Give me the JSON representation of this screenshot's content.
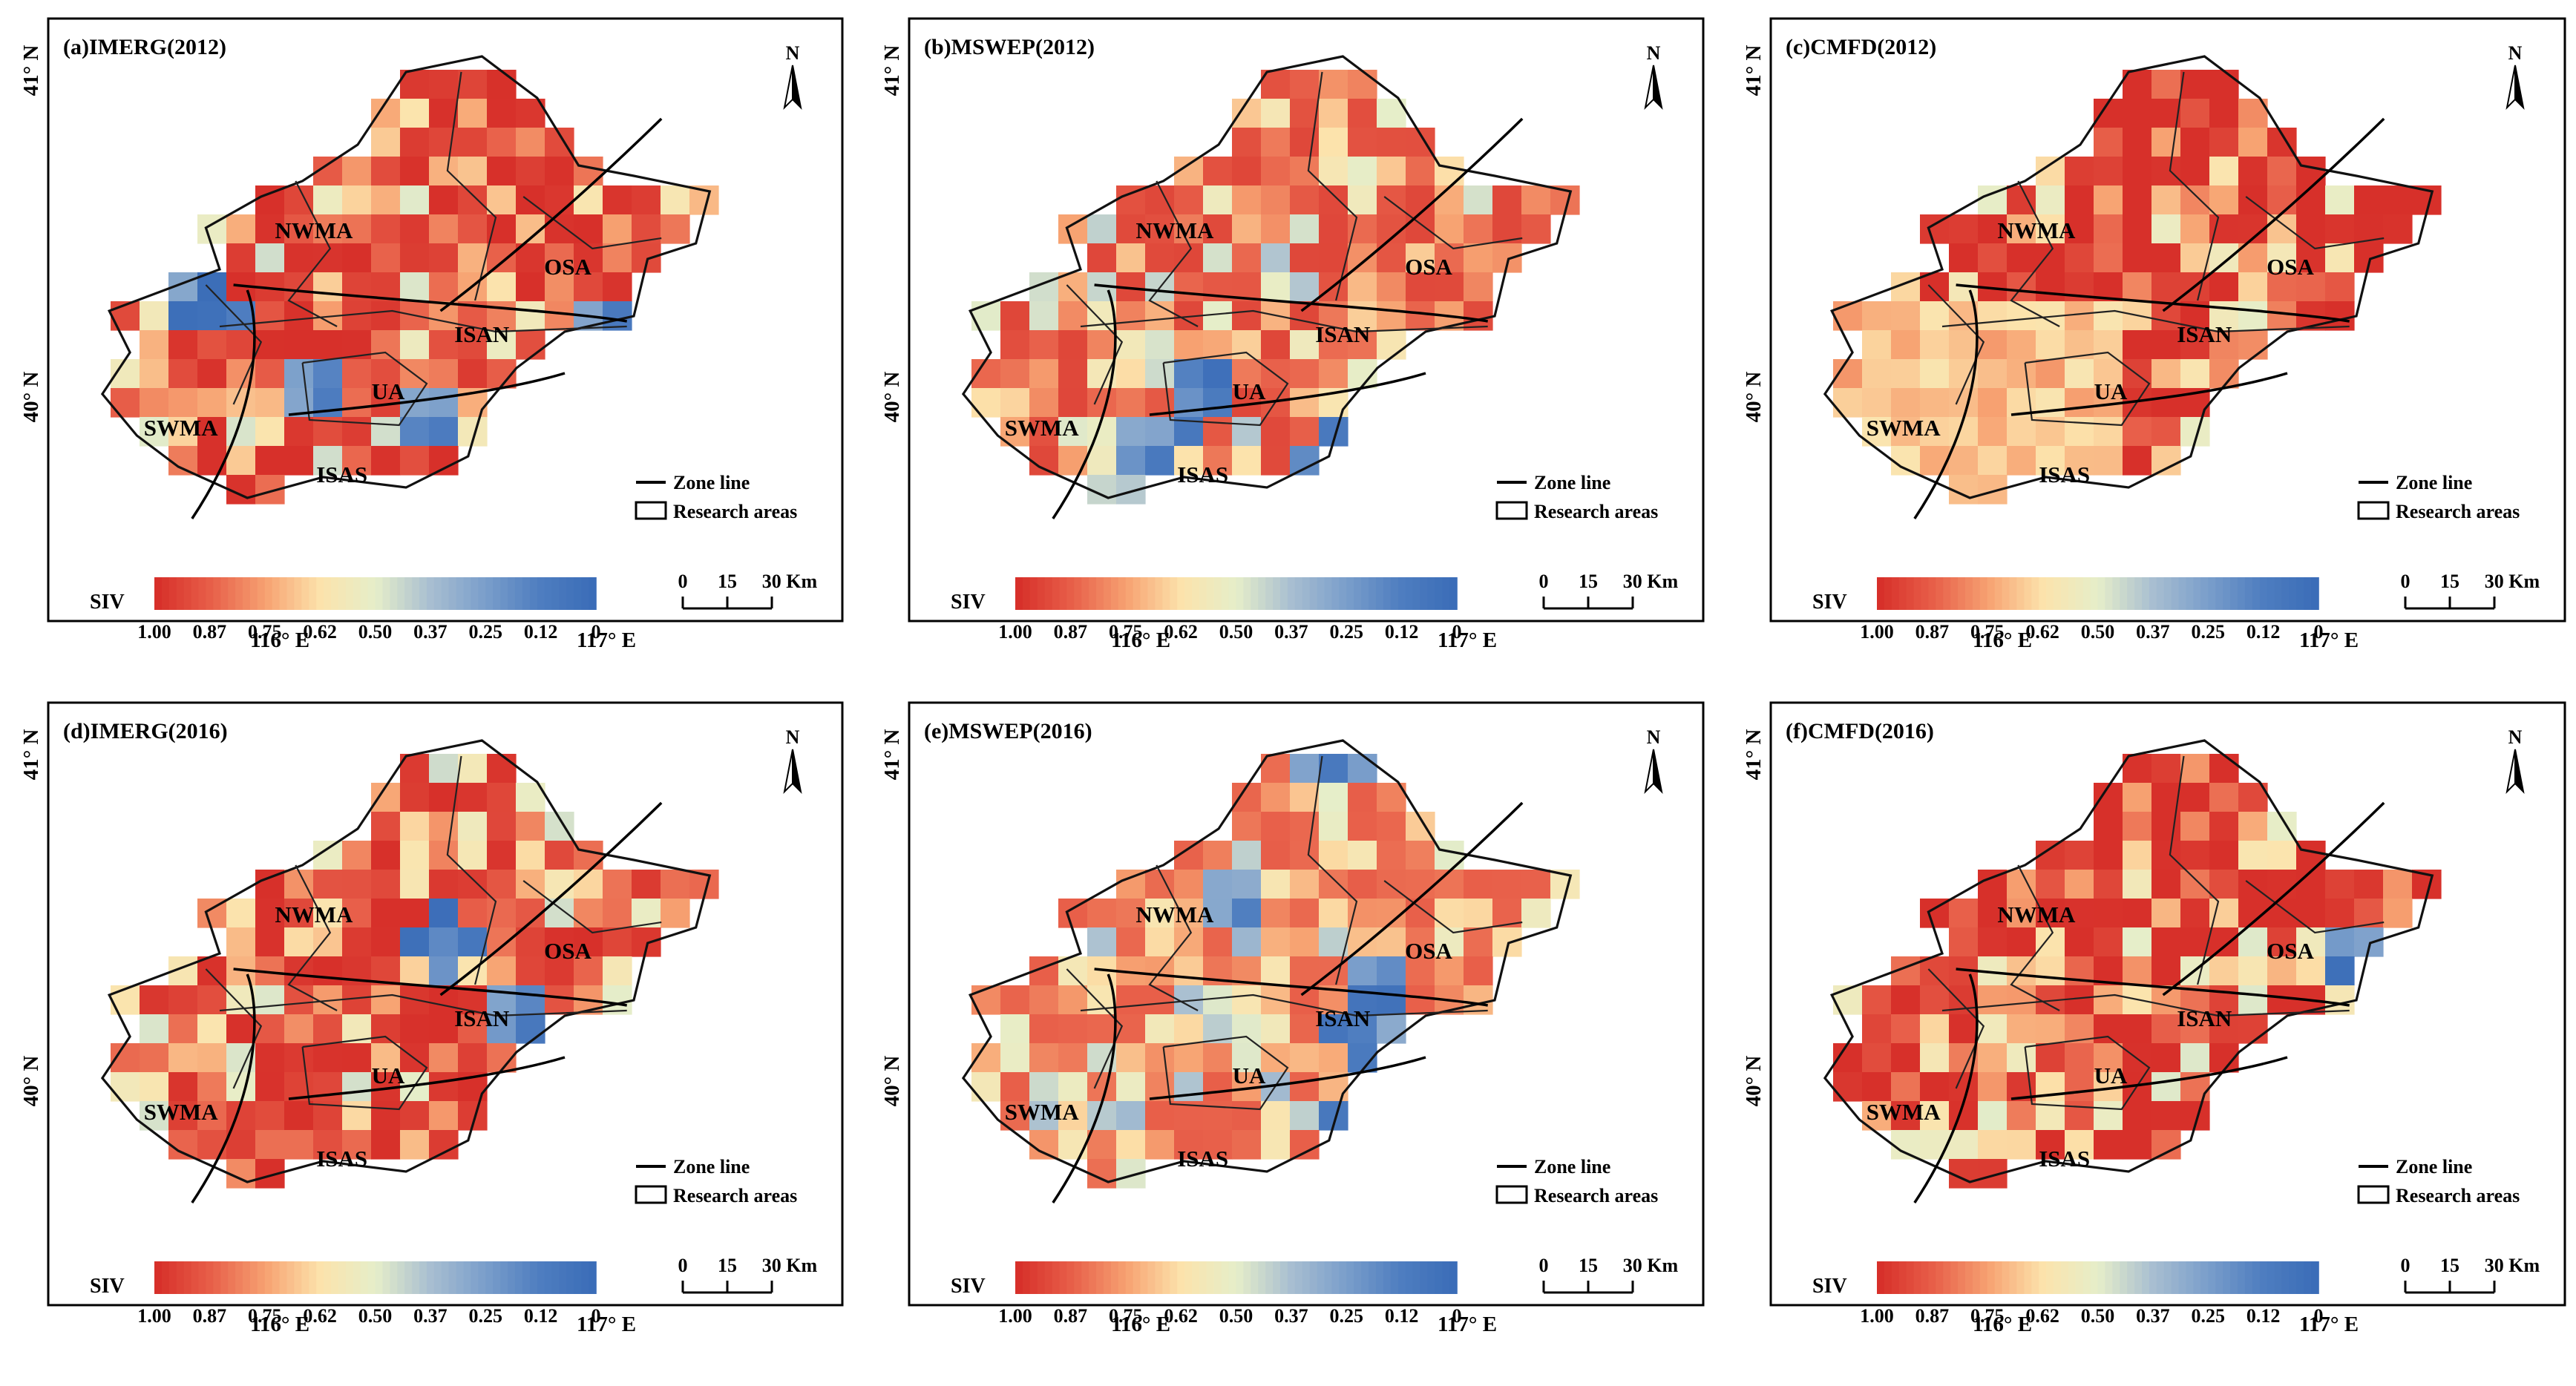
{
  "figure": {
    "panels": [
      {
        "id": "a",
        "title": "(a)IMERG(2012)",
        "product": "IMERG",
        "year": "2012",
        "seed": 11,
        "blue": [
          [
            0,
            0.85,
            0.5
          ],
          [
            0,
            0.78,
            0.56
          ],
          [
            0,
            0.34,
            0.68
          ],
          [
            0,
            0.5,
            0.72
          ],
          [
            0.2,
            0.18,
            0.52
          ]
        ],
        "shift": 0.0
      },
      {
        "id": "b",
        "title": "(b)MSWEP(2012)",
        "product": "MSWEP",
        "year": "2012",
        "seed": 23,
        "blue": [
          [
            0,
            0.58,
            0.8
          ],
          [
            0.05,
            0.38,
            0.68
          ],
          [
            0,
            0.3,
            0.76
          ]
        ],
        "shift": 0.06
      },
      {
        "id": "c",
        "title": "(c)CMFD(2012)",
        "product": "CMFD",
        "year": "2012",
        "seed": 37,
        "blue": [],
        "shift": -0.05,
        "westPale": true
      },
      {
        "id": "d",
        "title": "(d)IMERG(2016)",
        "product": "IMERG",
        "year": "2016",
        "seed": 41,
        "blue": [
          [
            0,
            0.52,
            0.42
          ],
          [
            0.1,
            0.64,
            0.57
          ],
          [
            0.1,
            0.7,
            0.68
          ]
        ],
        "shift": 0.0
      },
      {
        "id": "e",
        "title": "(e)MSWEP(2016)",
        "product": "MSWEP",
        "year": "2016",
        "seed": 53,
        "blue": [
          [
            0,
            0.56,
            0.05
          ],
          [
            0,
            0.42,
            0.35
          ],
          [
            0,
            0.63,
            0.48
          ],
          [
            0,
            0.62,
            0.6
          ],
          [
            0,
            0.58,
            0.78
          ]
        ],
        "shift": 0.12
      },
      {
        "id": "f",
        "title": "(f)CMFD(2016)",
        "product": "CMFD",
        "year": "2016",
        "seed": 67,
        "blue": [
          [
            0,
            0.79,
            0.45
          ]
        ],
        "shift": -0.02
      }
    ],
    "regions": [
      "NWMA",
      "OSA",
      "ISAN",
      "SWMA",
      "UA",
      "ISAS"
    ],
    "lat_labels": [
      "41° N",
      "40° N"
    ],
    "lon_labels": [
      "116° E",
      "117° E"
    ],
    "colorbar": {
      "name": "SIV",
      "ticks": [
        "1.00",
        "0.87",
        "0.75",
        "0.62",
        "0.50",
        "0.37",
        "0.25",
        "0.12",
        "0"
      ],
      "colors": [
        "#d7302a",
        "#e8604a",
        "#f7a372",
        "#fce3ac",
        "#e6eec9",
        "#a9bfd1",
        "#7b9fcb",
        "#4f7ec0",
        "#3b6db8"
      ]
    },
    "legend": {
      "zone_line": "Zone line",
      "research_areas": "Research areas"
    },
    "scale_bar": {
      "ticks": [
        "0",
        "15",
        "30 Km"
      ]
    },
    "north_arrow": "N"
  }
}
